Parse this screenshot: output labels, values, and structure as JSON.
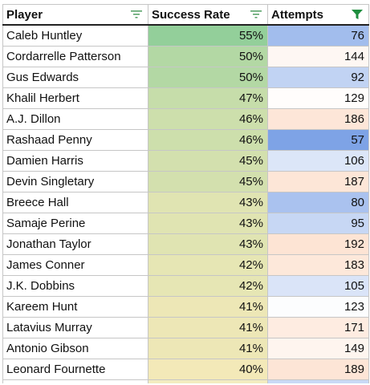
{
  "header": {
    "player": "Player",
    "success_rate": "Success Rate",
    "attempts": "Attempts"
  },
  "filter_icons": {
    "player": "filter-icon",
    "success_rate": "filter-icon",
    "attempts": "filter-active-icon"
  },
  "colors": {
    "filter_inactive": "#5aa36a",
    "filter_active": "#1e8e3e",
    "rate_high": "#93cf9a",
    "rate_low": "#f3e9b8",
    "att_low": "#7ea3e6",
    "att_mid": "#ffffff",
    "att_high": "#fde4d4"
  },
  "rows": [
    {
      "player": "Caleb Huntley",
      "success_rate": "55%",
      "attempts": "76"
    },
    {
      "player": "Cordarrelle Patterson",
      "success_rate": "50%",
      "attempts": "144"
    },
    {
      "player": "Gus Edwards",
      "success_rate": "50%",
      "attempts": "92"
    },
    {
      "player": "Khalil Herbert",
      "success_rate": "47%",
      "attempts": "129"
    },
    {
      "player": "A.J. Dillon",
      "success_rate": "46%",
      "attempts": "186"
    },
    {
      "player": "Rashaad Penny",
      "success_rate": "46%",
      "attempts": "57"
    },
    {
      "player": "Damien Harris",
      "success_rate": "45%",
      "attempts": "106"
    },
    {
      "player": "Devin Singletary",
      "success_rate": "45%",
      "attempts": "187"
    },
    {
      "player": "Breece Hall",
      "success_rate": "43%",
      "attempts": "80"
    },
    {
      "player": "Samaje Perine",
      "success_rate": "43%",
      "attempts": "95"
    },
    {
      "player": "Jonathan Taylor",
      "success_rate": "43%",
      "attempts": "192"
    },
    {
      "player": "James Conner",
      "success_rate": "42%",
      "attempts": "183"
    },
    {
      "player": "J.K. Dobbins",
      "success_rate": "42%",
      "attempts": "105"
    },
    {
      "player": "Kareem Hunt",
      "success_rate": "41%",
      "attempts": "123"
    },
    {
      "player": "Latavius Murray",
      "success_rate": "41%",
      "attempts": "171"
    },
    {
      "player": "Antonio Gibson",
      "success_rate": "41%",
      "attempts": "149"
    },
    {
      "player": "Leonard Fournette",
      "success_rate": "40%",
      "attempts": "189"
    }
  ]
}
